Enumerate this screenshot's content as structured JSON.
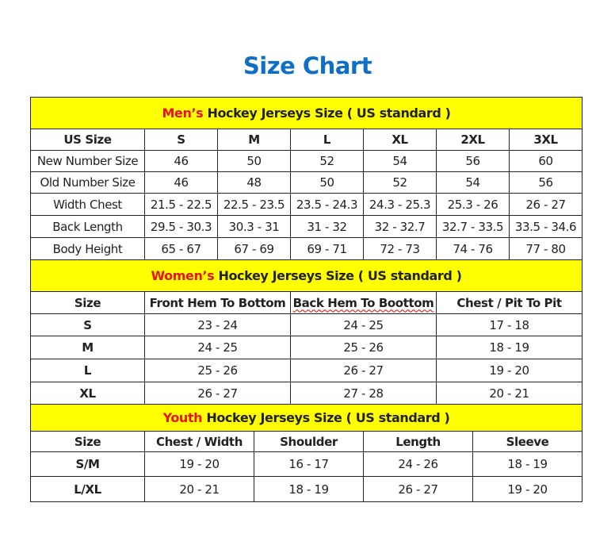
{
  "title": "Size Chart",
  "sections": [
    {
      "id": "men",
      "highlight": "Men’s",
      "heading": "Hockey Jerseys Size ( US standard )",
      "columns": [
        "US Size",
        "S",
        "M",
        "L",
        "XL",
        "2XL",
        "3XL"
      ],
      "rows": [
        [
          "New Number Size",
          "46",
          "50",
          "52",
          "54",
          "56",
          "60"
        ],
        [
          "Old Number Size",
          "46",
          "48",
          "50",
          "52",
          "54",
          "56"
        ],
        [
          "Width Chest",
          "21.5 - 22.5",
          "22.5 - 23.5",
          "23.5 - 24.3",
          "24.3 - 25.3",
          "25.3 - 26",
          "26 - 27"
        ],
        [
          "Back Length",
          "29.5 - 30.3",
          "30.3 - 31",
          "31 - 32",
          "32 - 32.7",
          "32.7 - 33.5",
          "33.5 - 34.6"
        ],
        [
          "Body Height",
          "65 - 67",
          "67 - 69",
          "69 - 71",
          "72 - 73",
          "74 - 76",
          "77 - 80"
        ]
      ]
    },
    {
      "id": "women",
      "highlight": "Women’s",
      "heading": "Hockey Jerseys Size ( US standard )",
      "columns": [
        "Size",
        "Front Hem To Bottom",
        "Back Hem To Boottom",
        "Chest / Pit To Pit"
      ],
      "rows": [
        [
          "S",
          "23 - 24",
          "24 - 25",
          "17 - 18"
        ],
        [
          "M",
          "24 - 25",
          "25 - 26",
          "18 - 19"
        ],
        [
          "L",
          "25 - 26",
          "26 - 27",
          "19 - 20"
        ],
        [
          "XL",
          "26 - 27",
          "27 - 28",
          "20 - 21"
        ]
      ]
    },
    {
      "id": "youth",
      "highlight": "Youth",
      "heading": "Hockey Jerseys Size ( US standard )",
      "columns": [
        "Size",
        "Chest / Width",
        "Shoulder",
        "Length",
        "Sleeve"
      ],
      "rows": [
        [
          "S/M",
          "19 - 20",
          "16 - 17",
          "24 - 26",
          "18 - 19"
        ],
        [
          "L/XL",
          "20 - 21",
          "18 - 19",
          "26 - 27",
          "19 - 20"
        ]
      ]
    }
  ],
  "colors": {
    "title": "#0f6fc6",
    "header_bg": "#ffff00",
    "highlight": "#e8141c"
  }
}
